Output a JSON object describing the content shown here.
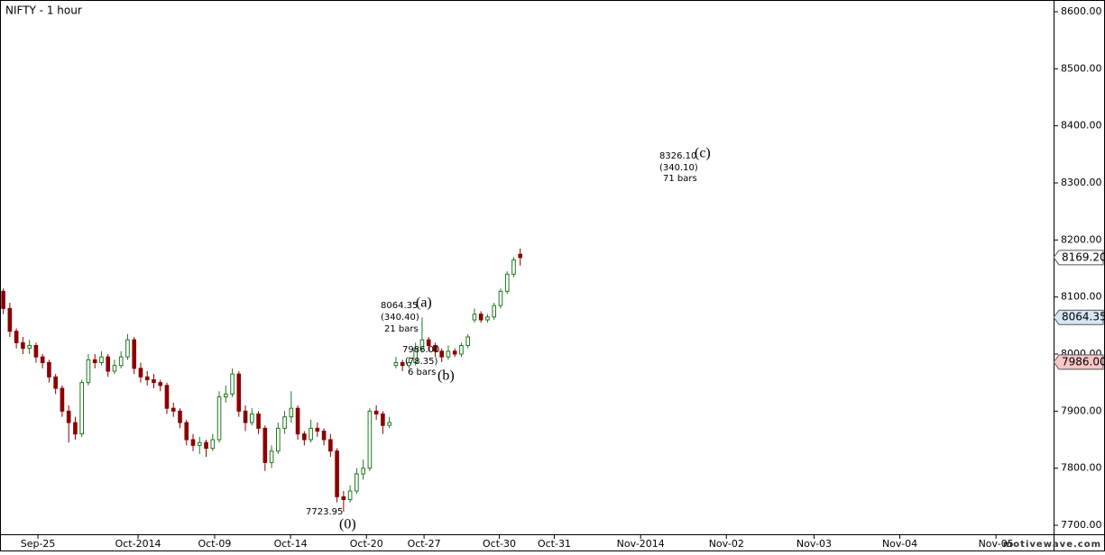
{
  "chart_data": {
    "type": "candlestick",
    "title": "NIFTY - 1 hour",
    "watermark": "motivewave.com",
    "up_color": "#1f7a1f",
    "down_color": "#8b0000",
    "open": [
      8110,
      8080,
      8040,
      8020,
      8010,
      8015,
      7995,
      7985,
      7960,
      7940,
      7900,
      7880,
      7860,
      7950,
      7990,
      7985,
      7995,
      7970,
      7980,
      7995,
      8025,
      7975,
      7960,
      7955,
      7950,
      7945,
      7905,
      7900,
      7880,
      7850,
      7840,
      7845,
      7835,
      7850,
      7925,
      7930,
      7965,
      7900,
      7880,
      7895,
      7870,
      7810,
      7830,
      7870,
      7890,
      7905,
      7860,
      7850,
      7870,
      7865,
      7850,
      7830,
      7750,
      7745,
      7760,
      7790,
      7800,
      7900,
      7895,
      7875,
      7980,
      7985,
      7980,
      7985,
      8010,
      8025,
      8015,
      8005,
      7995,
      8005,
      8000,
      8015,
      8060,
      8070,
      8060,
      8065,
      8085,
      8110,
      8140,
      8175
    ],
    "high": [
      8115,
      8090,
      8045,
      8030,
      8025,
      8020,
      8000,
      7990,
      7965,
      7945,
      7910,
      7890,
      7955,
      8000,
      8000,
      8005,
      8000,
      7990,
      8005,
      8035,
      8030,
      7985,
      7970,
      7965,
      7955,
      7950,
      7915,
      7905,
      7885,
      7860,
      7855,
      7850,
      7860,
      7935,
      7945,
      7975,
      7970,
      7910,
      7905,
      7900,
      7875,
      7840,
      7880,
      7900,
      7935,
      7910,
      7865,
      7885,
      7880,
      7870,
      7860,
      7835,
      7760,
      7770,
      7800,
      7815,
      7905,
      7910,
      7900,
      7890,
      7995,
      7990,
      7995,
      8020,
      8064.35,
      8030,
      8020,
      8010,
      8015,
      8010,
      8020,
      8035,
      8080,
      8075,
      8070,
      8090,
      8115,
      8145,
      8170,
      8185
    ],
    "low": [
      8070,
      8030,
      8010,
      8000,
      8000,
      7985,
      7975,
      7950,
      7930,
      7890,
      7845,
      7850,
      7855,
      7945,
      7975,
      7980,
      7960,
      7965,
      7975,
      7990,
      7965,
      7950,
      7945,
      7940,
      7935,
      7895,
      7890,
      7870,
      7840,
      7830,
      7825,
      7820,
      7830,
      7845,
      7915,
      7925,
      7890,
      7865,
      7875,
      7860,
      7795,
      7800,
      7825,
      7860,
      7880,
      7850,
      7840,
      7845,
      7855,
      7840,
      7820,
      7740,
      7723.95,
      7740,
      7755,
      7780,
      7795,
      7885,
      7860,
      7870,
      7975,
      7970,
      7975,
      7980,
      8005,
      8005,
      7995,
      7986,
      7990,
      7995,
      7995,
      8010,
      8055,
      8055,
      8055,
      8060,
      8080,
      8105,
      8135,
      8155
    ],
    "close": [
      8080,
      8040,
      8020,
      8010,
      8015,
      7995,
      7985,
      7960,
      7940,
      7900,
      7880,
      7860,
      7950,
      7990,
      7985,
      7995,
      7970,
      7980,
      7995,
      8025,
      7975,
      7960,
      7955,
      7950,
      7945,
      7905,
      7900,
      7880,
      7850,
      7840,
      7845,
      7835,
      7850,
      7925,
      7930,
      7965,
      7900,
      7880,
      7895,
      7870,
      7810,
      7830,
      7870,
      7890,
      7905,
      7860,
      7850,
      7870,
      7865,
      7850,
      7830,
      7750,
      7745,
      7760,
      7790,
      7800,
      7900,
      7895,
      7875,
      7880,
      7985,
      7980,
      7985,
      8010,
      8025,
      8015,
      8005,
      7995,
      8005,
      8000,
      8015,
      8030,
      8070,
      8060,
      8065,
      8085,
      8110,
      8140,
      8165,
      8169.2
    ],
    "xlim": [
      0,
      161
    ],
    "xticks": [
      {
        "value": 5.8,
        "label": "Sep-25"
      },
      {
        "value": 21.1,
        "label": "Oct-2014"
      },
      {
        "value": 32.8,
        "label": "Oct-09"
      },
      {
        "value": 44.4,
        "label": "Oct-14"
      },
      {
        "value": 56,
        "label": "Oct-20"
      },
      {
        "value": 64.8,
        "label": "Oct-27"
      },
      {
        "value": 76.3,
        "label": "Oct-30"
      },
      {
        "value": 84.7,
        "label": "Oct-31"
      },
      {
        "value": 97.9,
        "label": "Nov-2014"
      },
      {
        "value": 111,
        "label": "Nov-02"
      },
      {
        "value": 124.4,
        "label": "Nov-03"
      },
      {
        "value": 137.5,
        "label": "Nov-04"
      },
      {
        "value": 152.2,
        "label": "Nov-05"
      }
    ],
    "ylim": [
      7700,
      8600
    ],
    "yticks": [
      {
        "value": 7700,
        "label": "7700.00"
      },
      {
        "value": 7800,
        "label": "7800.00"
      },
      {
        "value": 7900,
        "label": "7900.00"
      },
      {
        "value": 8000,
        "label": "8000.00"
      },
      {
        "value": 8100,
        "label": "8100.00"
      },
      {
        "value": 8200,
        "label": "8200.00"
      },
      {
        "value": 8300,
        "label": "8300.00"
      },
      {
        "value": 8400,
        "label": "8400.00"
      },
      {
        "value": 8500,
        "label": "8500.00"
      },
      {
        "value": 8600,
        "label": "8600.00"
      }
    ],
    "price_markers": [
      {
        "value": 8169.2,
        "label": "8169.20",
        "color": "#ffffff"
      },
      {
        "value": 8064.35,
        "label": "8064.35",
        "color": "#d6e6f5"
      },
      {
        "value": 7986,
        "label": "7986.00",
        "color": "#f7c6c6"
      }
    ],
    "annotations": [
      "8064.35",
      "(a)",
      "(340.40)",
      "21 bars",
      "7986.00",
      "(78.35)",
      "6 bars",
      "(b)",
      "7723.95",
      "(0)",
      "8326.10",
      "(c)",
      "(340.10)",
      "71 bars"
    ]
  }
}
